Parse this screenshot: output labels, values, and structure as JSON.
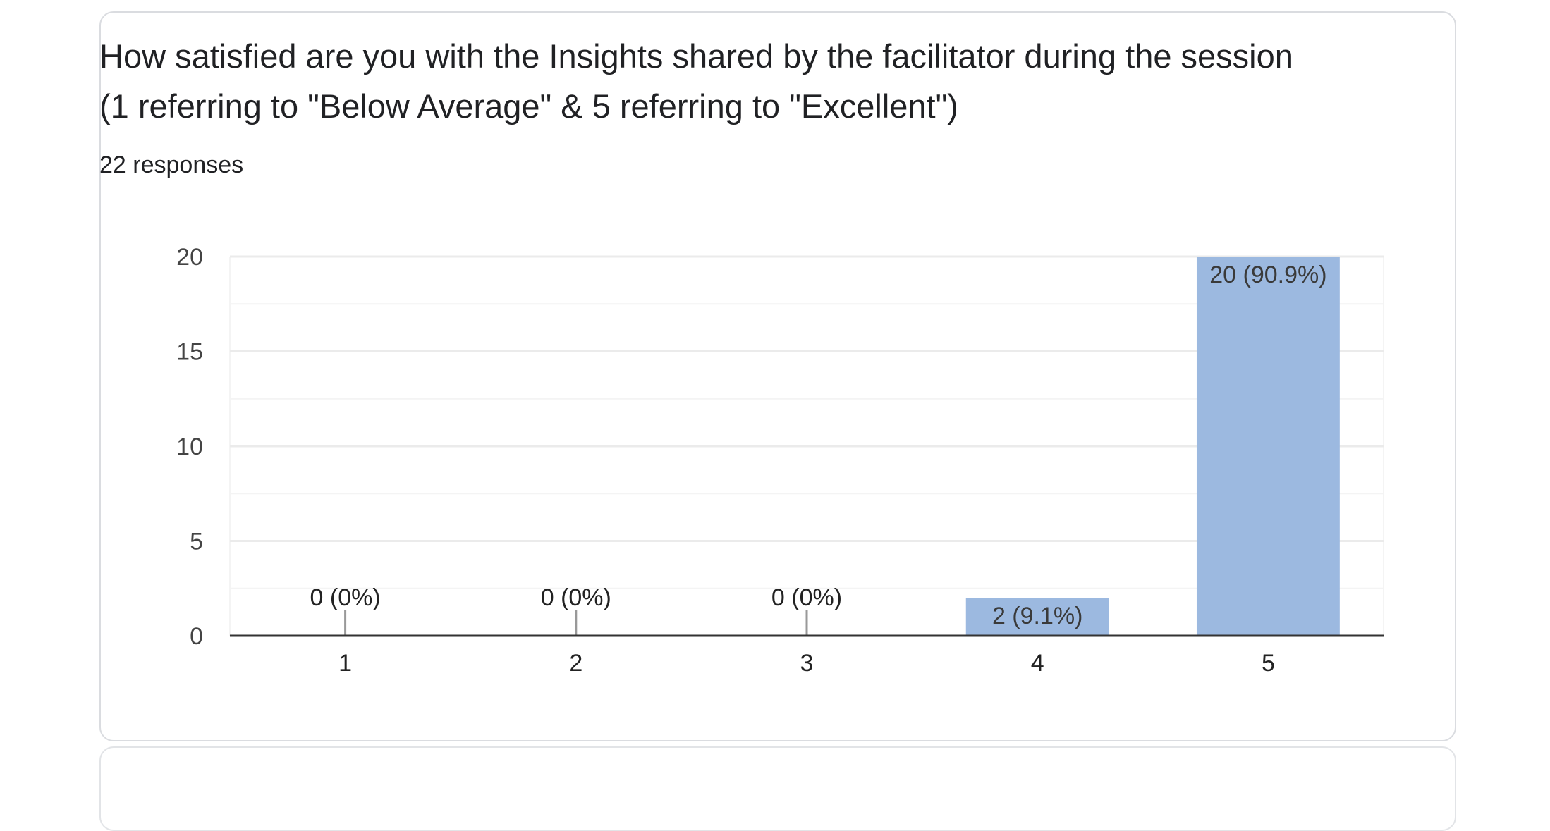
{
  "question": {
    "title": "How satisfied are you with the Insights shared by the facilitator during the session (1 referring to \"Below Average\" & 5 referring to \"Excellent\")",
    "responses": "22 responses"
  },
  "colors": {
    "bar": "#9cb9e0",
    "gridline": "#ebebeb",
    "minor_gridline": "#f4f4f4",
    "baseline": "#333333",
    "zero_tick": "#999999",
    "card_border": "#dadce0"
  },
  "chart_data": {
    "type": "bar",
    "title": "",
    "xlabel": "",
    "ylabel": "",
    "categories": [
      "1",
      "2",
      "3",
      "4",
      "5"
    ],
    "values": [
      0,
      0,
      0,
      2,
      20
    ],
    "data_labels": [
      "0 (0%)",
      "0 (0%)",
      "0 (0%)",
      "2 (9.1%)",
      "20 (90.9%)"
    ],
    "ylim": [
      0,
      20
    ],
    "yticks": [
      0,
      5,
      10,
      15,
      20
    ],
    "minor_gridlines": true,
    "grid": true,
    "legend": "none"
  }
}
